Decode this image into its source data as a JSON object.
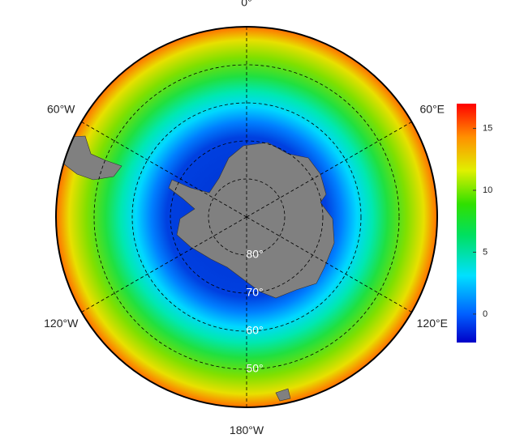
{
  "map": {
    "longitude_labels": [
      {
        "value": 0,
        "label": "0°"
      },
      {
        "value": 60,
        "label": "60°E"
      },
      {
        "value": 120,
        "label": "120°E"
      },
      {
        "value": 180,
        "label": "180°W"
      },
      {
        "value": -120,
        "label": "120°W"
      },
      {
        "value": -60,
        "label": "60°W"
      }
    ],
    "latitude_labels": [
      {
        "value": -80,
        "label": "80°"
      },
      {
        "value": -70,
        "label": "70°"
      },
      {
        "value": -60,
        "label": "60°"
      },
      {
        "value": -50,
        "label": "50°"
      }
    ],
    "outer_latitude": -40,
    "colorbar": {
      "lim": [
        -2.3,
        17
      ],
      "ticks": [
        0,
        5,
        10,
        15
      ]
    }
  }
}
